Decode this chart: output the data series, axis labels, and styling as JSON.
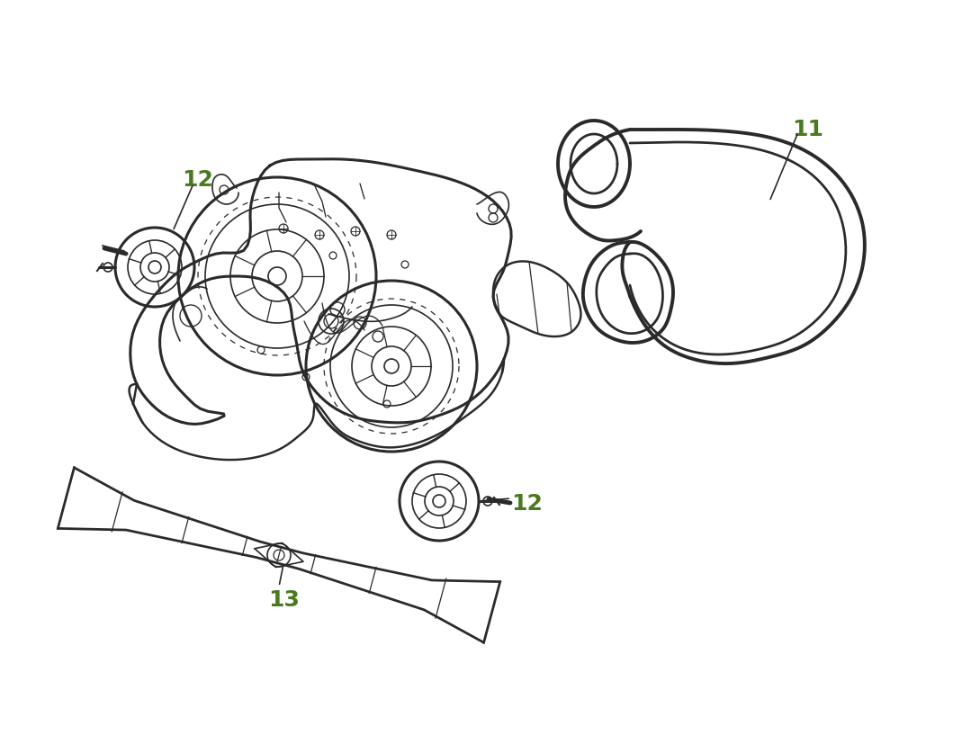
{
  "bg_color": "#ffffff",
  "line_color": "#2a2a2a",
  "label_color": "#4a7a20",
  "label_fontsize": 18,
  "label_fontweight": "bold",
  "figsize": [
    10.59,
    8.28
  ],
  "dpi": 100,
  "belt_lw": 2.8,
  "deck_lw": 2.2,
  "detail_lw": 1.2,
  "thin_lw": 0.9
}
